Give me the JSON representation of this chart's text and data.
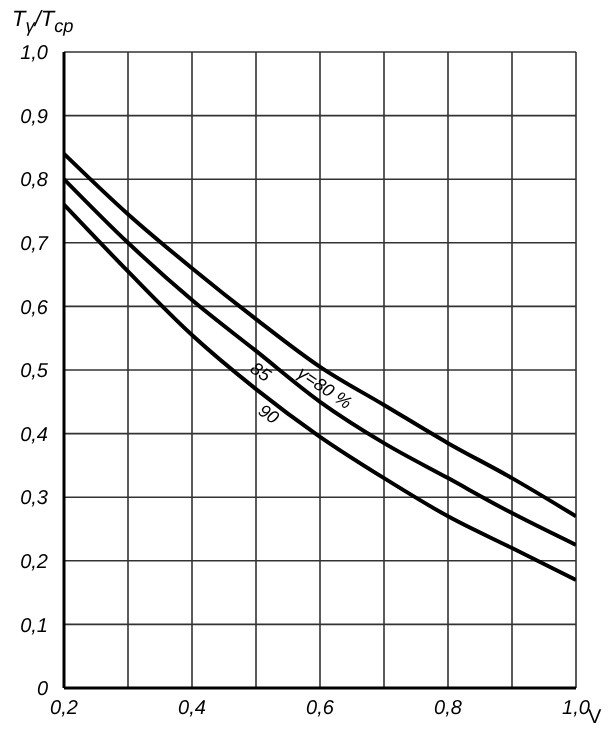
{
  "chart_data": {
    "type": "line",
    "ylabel": "T$_{γ}$/T$_{ср}$",
    "xlabel": "V",
    "x": [
      0.2,
      0.3,
      0.4,
      0.5,
      0.6,
      0.7,
      0.8,
      0.9,
      1.0
    ],
    "series": [
      {
        "name": "γ=80 %",
        "color": "#000000",
        "values": [
          0.84,
          0.745,
          0.66,
          0.58,
          0.505,
          0.445,
          0.385,
          0.33,
          0.27
        ]
      },
      {
        "name": "85",
        "color": "#000000",
        "values": [
          0.8,
          0.7,
          0.61,
          0.53,
          0.45,
          0.385,
          0.33,
          0.275,
          0.225
        ]
      },
      {
        "name": "90",
        "color": "#000000",
        "values": [
          0.76,
          0.655,
          0.555,
          0.47,
          0.395,
          0.33,
          0.27,
          0.22,
          0.17
        ]
      }
    ],
    "xlim": [
      0.2,
      1.0
    ],
    "xticks": [
      {
        "value": 0.2,
        "label": "0,2"
      },
      {
        "value": 0.3,
        "label": null
      },
      {
        "value": 0.4,
        "label": "0,4"
      },
      {
        "value": 0.5,
        "label": null
      },
      {
        "value": 0.6,
        "label": "0,6"
      },
      {
        "value": 0.7,
        "label": null
      },
      {
        "value": 0.8,
        "label": "0,8"
      },
      {
        "value": 0.9,
        "label": null
      },
      {
        "value": 1.0,
        "label": "1,0"
      }
    ],
    "ylim": [
      0,
      1.0
    ],
    "yticks": [
      0,
      {
        "value": 0.1,
        "label": "0,1"
      },
      {
        "value": 0.2,
        "label": "0,2"
      },
      {
        "value": 0.3,
        "label": "0,3"
      },
      {
        "value": 0.4,
        "label": "0,4"
      },
      {
        "value": 0.5,
        "label": "0,5"
      },
      {
        "value": 0.6,
        "label": "0,6"
      },
      {
        "value": 0.7,
        "label": "0,7"
      },
      {
        "value": 0.8,
        "label": "0,8"
      },
      {
        "value": 0.9,
        "label": "0,9"
      },
      {
        "value": 1.0,
        "label": "1,0"
      }
    ],
    "grid": true,
    "legend": false,
    "marker": "none",
    "line_style": "solid"
  }
}
